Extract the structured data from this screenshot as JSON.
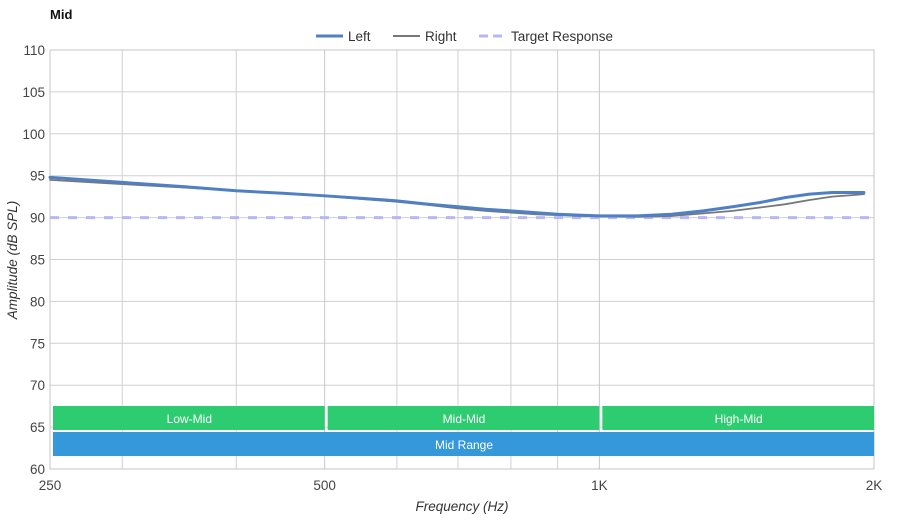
{
  "chart_data": {
    "type": "line",
    "title": "Mid",
    "xlabel": "Frequency (Hz)",
    "ylabel": "Amplitude (dB SPL)",
    "x_scale": "log",
    "xlim": [
      250,
      2000
    ],
    "ylim": [
      60,
      110
    ],
    "grid": true,
    "legend_position": "top-center",
    "x_ticks": [
      {
        "value": 250,
        "label": "250"
      },
      {
        "value": 500,
        "label": "500"
      },
      {
        "value": 1000,
        "label": "1K"
      },
      {
        "value": 2000,
        "label": "2K"
      }
    ],
    "x_minor_grid": [
      300,
      400,
      600,
      700,
      800,
      900
    ],
    "y_ticks": [
      60,
      65,
      70,
      75,
      80,
      85,
      90,
      95,
      100,
      105,
      110
    ],
    "series": [
      {
        "name": "Left",
        "color": "#4f80c4",
        "style": "solid",
        "x": [
          250,
          300,
          350,
          400,
          450,
          500,
          550,
          600,
          650,
          700,
          750,
          800,
          850,
          900,
          950,
          1000,
          1100,
          1200,
          1300,
          1400,
          1500,
          1600,
          1700,
          1800,
          1900,
          1950
        ],
        "y": [
          94.8,
          94.2,
          93.7,
          93.2,
          92.9,
          92.6,
          92.3,
          92.0,
          91.6,
          91.3,
          91.0,
          90.8,
          90.6,
          90.4,
          90.3,
          90.2,
          90.2,
          90.4,
          90.8,
          91.3,
          91.8,
          92.4,
          92.8,
          93.0,
          93.0,
          93.0
        ]
      },
      {
        "name": "Right",
        "color": "#777777",
        "style": "solid",
        "x": [
          250,
          300,
          350,
          400,
          450,
          500,
          550,
          600,
          650,
          700,
          750,
          800,
          850,
          900,
          950,
          1000,
          1100,
          1200,
          1300,
          1400,
          1500,
          1600,
          1700,
          1800,
          1900,
          1950
        ],
        "y": [
          94.5,
          94.0,
          93.6,
          93.2,
          92.9,
          92.6,
          92.2,
          91.9,
          91.5,
          91.1,
          90.8,
          90.6,
          90.4,
          90.3,
          90.2,
          90.2,
          90.1,
          90.2,
          90.5,
          90.8,
          91.2,
          91.6,
          92.1,
          92.5,
          92.7,
          92.8
        ]
      },
      {
        "name": "Target Response",
        "color": "#b7b7f5",
        "style": "dashed",
        "x": [
          250,
          2000
        ],
        "y": [
          90,
          90
        ]
      }
    ],
    "bands": [
      {
        "label": "Low-Mid",
        "from": 250,
        "to": 500,
        "row": 0,
        "color": "#2ecc71"
      },
      {
        "label": "Mid-Mid",
        "from": 500,
        "to": 1000,
        "row": 0,
        "color": "#2ecc71"
      },
      {
        "label": "High-Mid",
        "from": 1000,
        "to": 2000,
        "row": 0,
        "color": "#2ecc71"
      },
      {
        "label": "Mid Range",
        "from": 250,
        "to": 2000,
        "row": 1,
        "color": "#3498db"
      }
    ]
  }
}
